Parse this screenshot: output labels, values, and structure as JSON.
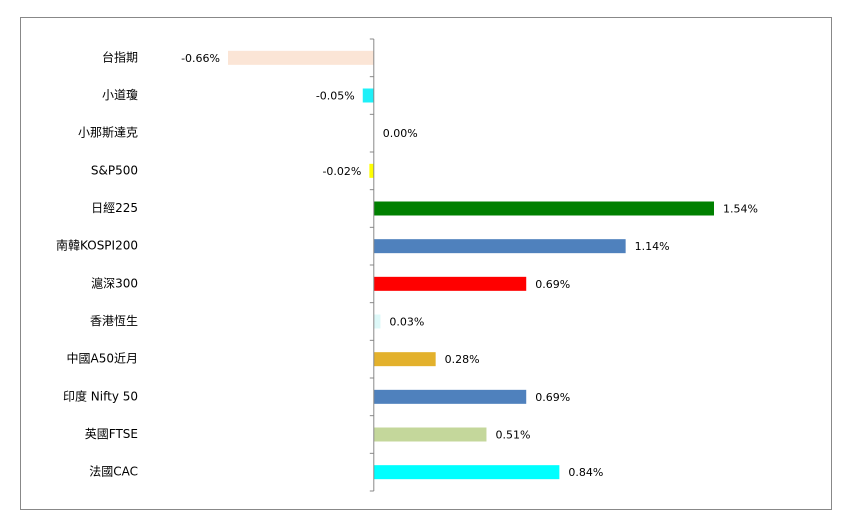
{
  "chart_data": {
    "type": "bar",
    "orientation": "horizontal",
    "categories": [
      "台指期",
      "小道瓊",
      "小那斯達克",
      "S&P500",
      "日經225",
      "南韓KOSPI200",
      "滬深300",
      "香港恆生",
      "中國A50近月",
      "印度 Nifty 50",
      "英國FTSE",
      "法國CAC"
    ],
    "values": [
      -0.66,
      -0.05,
      0.0,
      -0.02,
      1.54,
      1.14,
      0.69,
      0.03,
      0.28,
      0.69,
      0.51,
      0.84
    ],
    "value_labels": [
      "-0.66%",
      "-0.05%",
      "0.00%",
      "-0.02%",
      "1.54%",
      "1.14%",
      "0.69%",
      "0.03%",
      "0.28%",
      "0.69%",
      "0.51%",
      "0.84%"
    ],
    "colors": [
      "#fbe5d6",
      "#1ff0f8",
      "#1ff0f8",
      "#ffff00",
      "#008000",
      "#4f81bd",
      "#ff0000",
      "#ddf8f8",
      "#e3b12c",
      "#4f81bd",
      "#c4d79b",
      "#00ffff"
    ]
  }
}
